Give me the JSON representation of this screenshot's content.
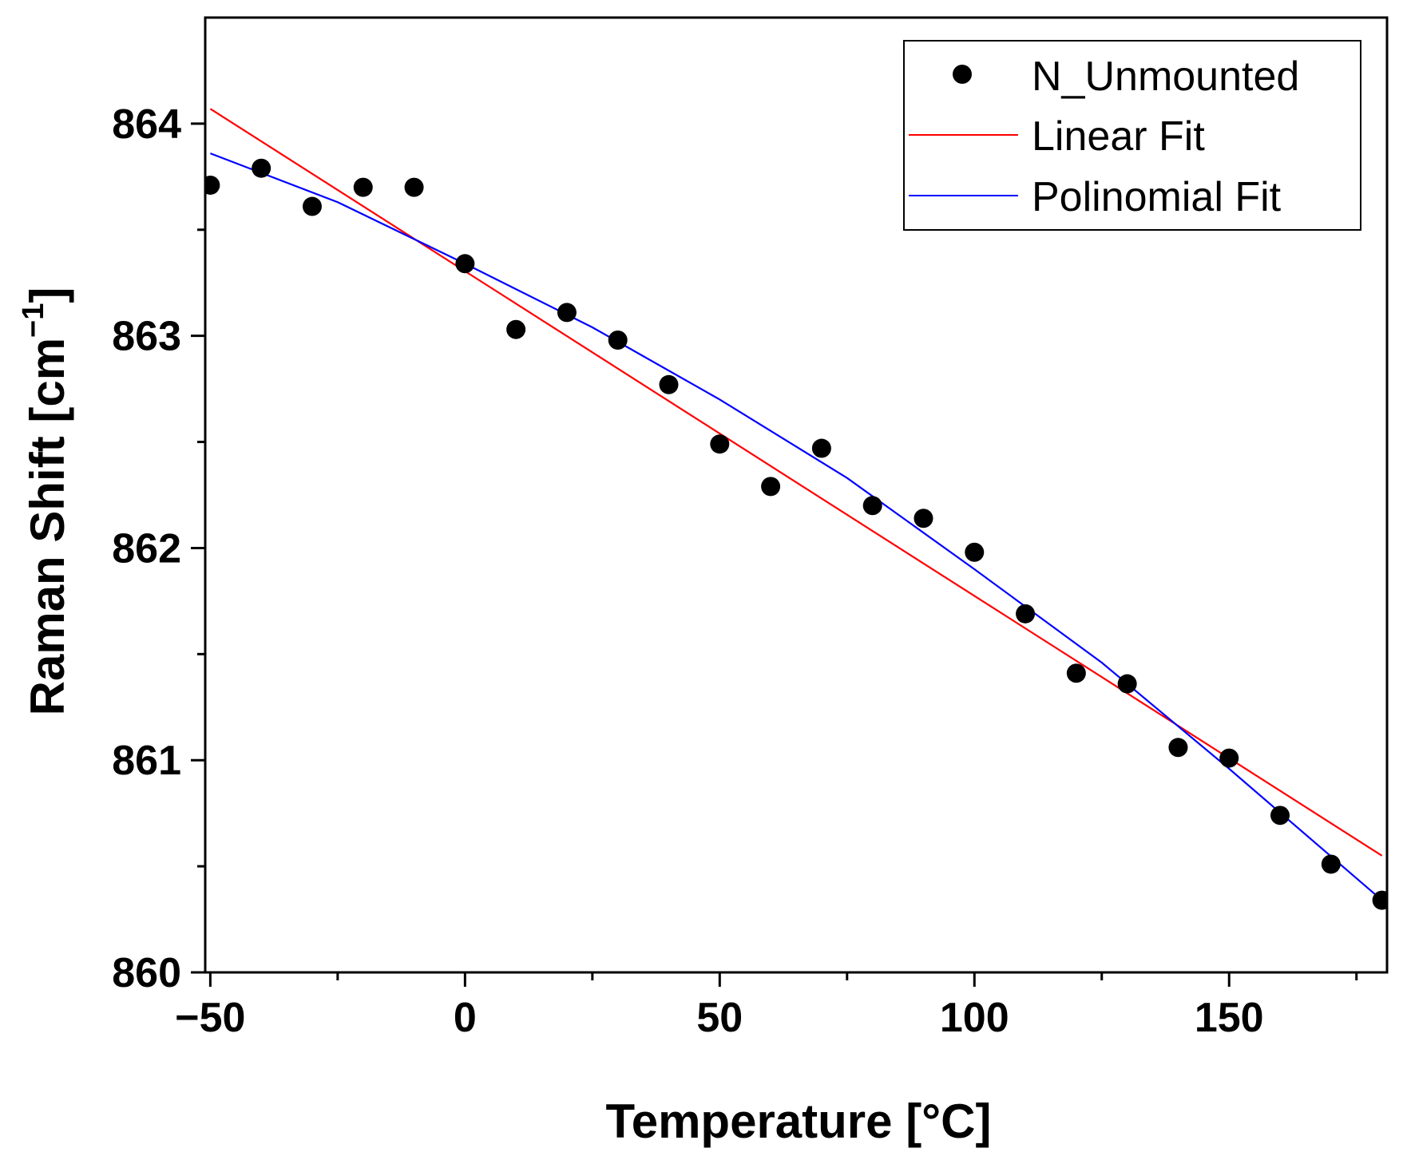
{
  "chart_data": {
    "type": "scatter",
    "title": "",
    "xlabel": "Temperature [°C]",
    "ylabel_main": "Raman Shift [cm",
    "ylabel_sup": "−1",
    "ylabel_close": "]",
    "xlim": [
      -51,
      181
    ],
    "ylim": [
      860,
      864.5
    ],
    "x_ticks": [
      -50,
      0,
      50,
      100,
      150
    ],
    "x_tick_labels": [
      "−50",
      "0",
      "50",
      "100",
      "150"
    ],
    "x_minor_ticks": [
      -25,
      25,
      75,
      125,
      175
    ],
    "y_ticks": [
      860,
      861,
      862,
      863,
      864
    ],
    "y_tick_labels": [
      "860",
      "861",
      "862",
      "863",
      "864"
    ],
    "y_minor_ticks": [
      860.5,
      861.5,
      862.5,
      863.5
    ],
    "grid": false,
    "legend_position": "top-right",
    "series": [
      {
        "name": "N_Unmounted",
        "kind": "scatter",
        "color": "#000000",
        "x": [
          -50,
          -40,
          -30,
          -20,
          -10,
          0,
          10,
          20,
          30,
          40,
          50,
          60,
          70,
          80,
          90,
          100,
          110,
          120,
          130,
          140,
          150,
          160,
          170,
          180
        ],
        "y": [
          863.71,
          863.79,
          863.61,
          863.7,
          863.7,
          863.34,
          863.03,
          863.11,
          862.98,
          862.77,
          862.49,
          862.29,
          862.47,
          862.2,
          862.14,
          861.98,
          861.69,
          861.41,
          861.36,
          861.06,
          861.01,
          860.74,
          860.51,
          860.34
        ]
      },
      {
        "name": "Linear Fit",
        "kind": "line",
        "color": "#ff0000",
        "x": [
          -50,
          180
        ],
        "y": [
          864.07,
          860.55
        ]
      },
      {
        "name": "Polinomial Fit",
        "kind": "line",
        "color": "#0000ff",
        "x": [
          -50,
          -25,
          0,
          25,
          50,
          75,
          100,
          125,
          150,
          180
        ],
        "y": [
          863.86,
          863.63,
          863.34,
          863.04,
          862.7,
          862.33,
          861.9,
          861.46,
          860.96,
          860.34
        ]
      }
    ]
  }
}
